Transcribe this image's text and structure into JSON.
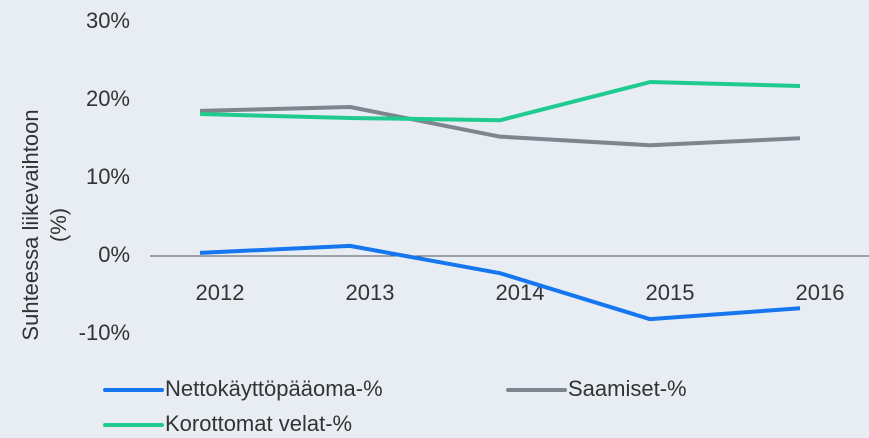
{
  "chart_data": {
    "type": "line",
    "ylabel": [
      "Suhteessa liikevaihtoon",
      "(%)"
    ],
    "categories": [
      "2012",
      "2013",
      "2014",
      "2015",
      "2016"
    ],
    "series": [
      {
        "name": "Nettokäyttöpääoma-%",
        "color": "#1576f0",
        "values": [
          0.4,
          1.3,
          -2.2,
          -8.1,
          -6.7
        ]
      },
      {
        "name": "Saamiset-%",
        "color": "#7d858e",
        "values": [
          18.6,
          19.1,
          15.3,
          14.2,
          15.1
        ]
      },
      {
        "name": "Korottomat velat-%",
        "color": "#1fcb8e",
        "values": [
          18.2,
          17.7,
          17.4,
          22.3,
          21.8
        ]
      }
    ],
    "ylim": [
      -10,
      30
    ],
    "yticks": [
      {
        "value": -10,
        "label": "-10%"
      },
      {
        "value": 0,
        "label": "0%"
      },
      {
        "value": 10,
        "label": "10%"
      },
      {
        "value": 20,
        "label": "20%"
      },
      {
        "value": 30,
        "label": "30%"
      }
    ],
    "grid": false,
    "legend": "bottom"
  }
}
